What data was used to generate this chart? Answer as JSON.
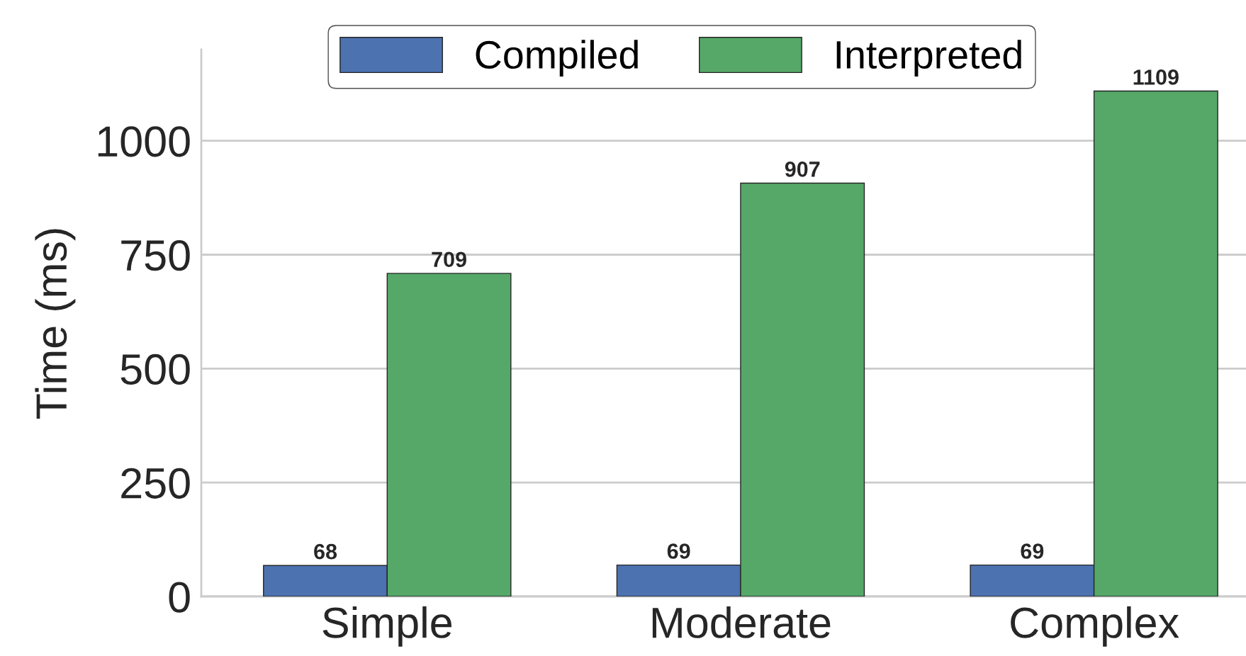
{
  "chart_data": {
    "type": "bar",
    "ylabel": "Time (ms)",
    "categories": [
      "Simple",
      "Moderate",
      "Complex"
    ],
    "series": [
      {
        "name": "Compiled",
        "color": "#4c72b0",
        "values": [
          68,
          69,
          69
        ]
      },
      {
        "name": "Interpreted",
        "color": "#55a868",
        "values": [
          709,
          907,
          1109
        ]
      }
    ],
    "ylim": [
      0,
      1200
    ],
    "yticks": [
      0,
      250,
      500,
      750,
      1000
    ],
    "grid": "y",
    "legend": "top",
    "data_labels": true
  }
}
